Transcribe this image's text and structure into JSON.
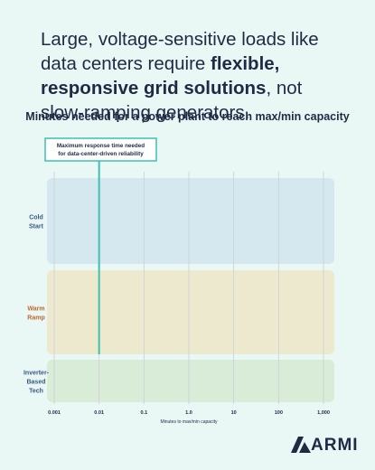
{
  "headline": {
    "pre": "Large, voltage-sensitive loads like data centers require ",
    "bold": "flexible, responsive grid solutions",
    "post": ", not slow-ramping generators."
  },
  "chart_data": {
    "type": "bar",
    "title": "Minutes needed for a power plant to reach max/min capacity",
    "xlabel": "Minutes to max/min capacity",
    "x_scale": "log",
    "xlim": [
      0.001,
      1000
    ],
    "x_ticks": [
      "0.001",
      "0.01",
      "0.1",
      "1.0",
      "10",
      "100",
      "1,000"
    ],
    "grid": true,
    "categories": [
      {
        "label": "Cold\nStart",
        "color": "#d5e8ef",
        "label_color": "#3b5a86"
      },
      {
        "label": "Warm\nRamp",
        "color": "#ece9cf",
        "label_color": "#c4672d"
      },
      {
        "label": "Inverter-\nBased\nTech",
        "color": "#d9ecd8",
        "label_color": "#3b5a86"
      }
    ],
    "reference_line": {
      "value": 0.01,
      "label": "Maximum response time needed\nfor data-center-driven reliability",
      "color": "#3ec1b0"
    }
  },
  "logo": {
    "text": "ARMI",
    "color": "#1f2a44"
  }
}
